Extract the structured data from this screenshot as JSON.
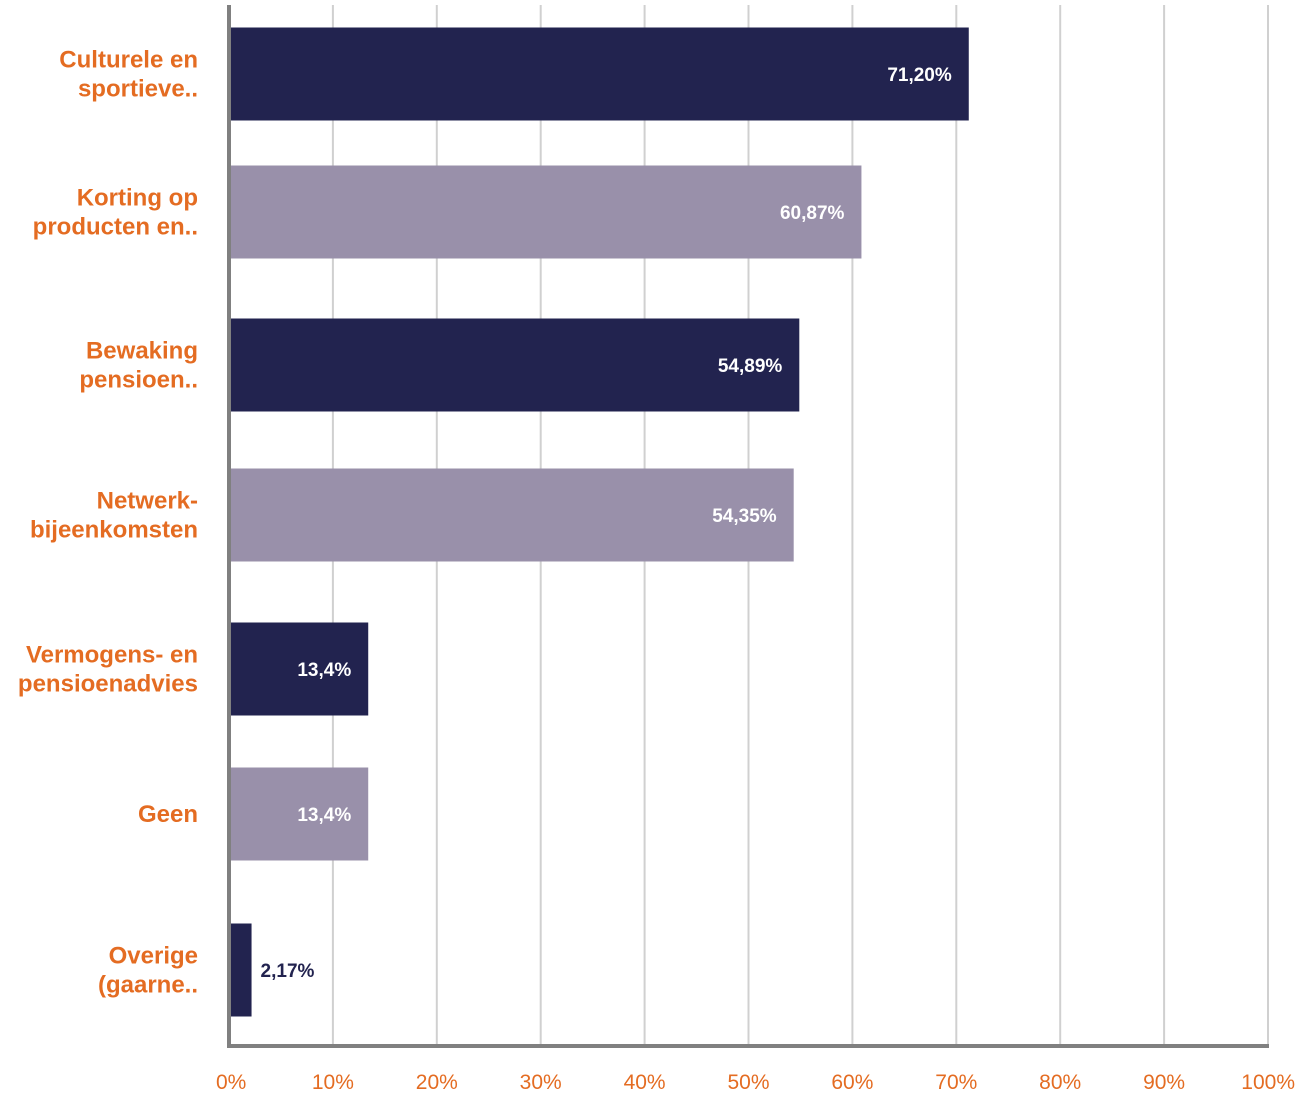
{
  "chart_data": {
    "type": "bar",
    "orientation": "horizontal",
    "categories": [
      [
        "Culturele en",
        "sportieve.."
      ],
      [
        "Korting op",
        "producten en.."
      ],
      [
        "Bewaking",
        "pensioen.."
      ],
      [
        "Netwerk-",
        "bijeenkomsten"
      ],
      [
        "Vermogens- en",
        "pensioenadvies"
      ],
      [
        "Geen"
      ],
      [
        "Overige",
        "(gaarne.."
      ]
    ],
    "values": [
      71.2,
      60.87,
      54.89,
      54.35,
      13.4,
      13.4,
      2.17
    ],
    "data_labels": [
      "71,20%",
      "60,87%",
      "54,89%",
      "54,35%",
      "13,4%",
      "13,4%",
      "2,17%"
    ],
    "xlim": [
      0,
      100
    ],
    "x_ticks": [
      "0%",
      "10%",
      "20%",
      "30%",
      "40%",
      "50%",
      "60%",
      "70%",
      "80%",
      "90%",
      "100%"
    ],
    "grid": "vertical",
    "title": "",
    "xlabel": "",
    "ylabel": "",
    "colors": {
      "bar_dark": "#22234f",
      "bar_light": "#9990aa",
      "label_text": "#e46c22",
      "grid": "#d0d0d0",
      "axis": "#808080",
      "value_on_bar": "#ffffff",
      "value_outside": "#22234f"
    }
  }
}
